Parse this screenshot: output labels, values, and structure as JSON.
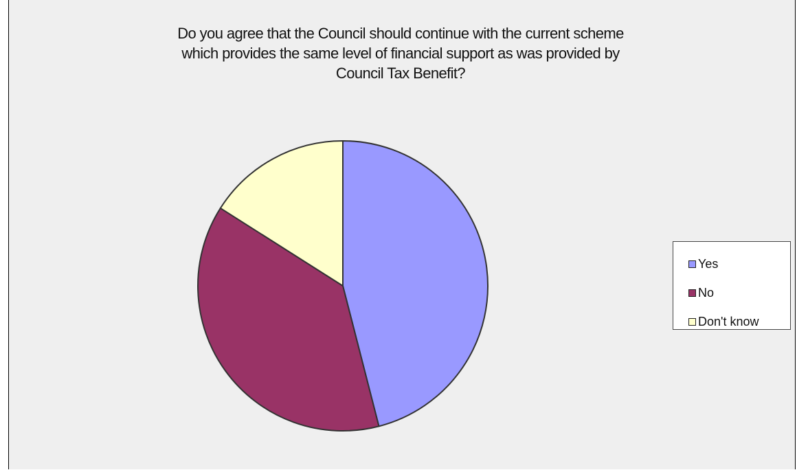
{
  "chart_data": {
    "type": "pie",
    "title": "Do you agree that the Council should continue with the current scheme\nwhich provides the same level of financial support as was provided by\nCouncil Tax Benefit?",
    "categories": [
      "Yes",
      "No",
      "Don't know"
    ],
    "values": [
      46,
      38,
      16
    ],
    "colors": [
      "#9999ff",
      "#993366",
      "#ffffcc"
    ],
    "legend_placement": "right"
  }
}
